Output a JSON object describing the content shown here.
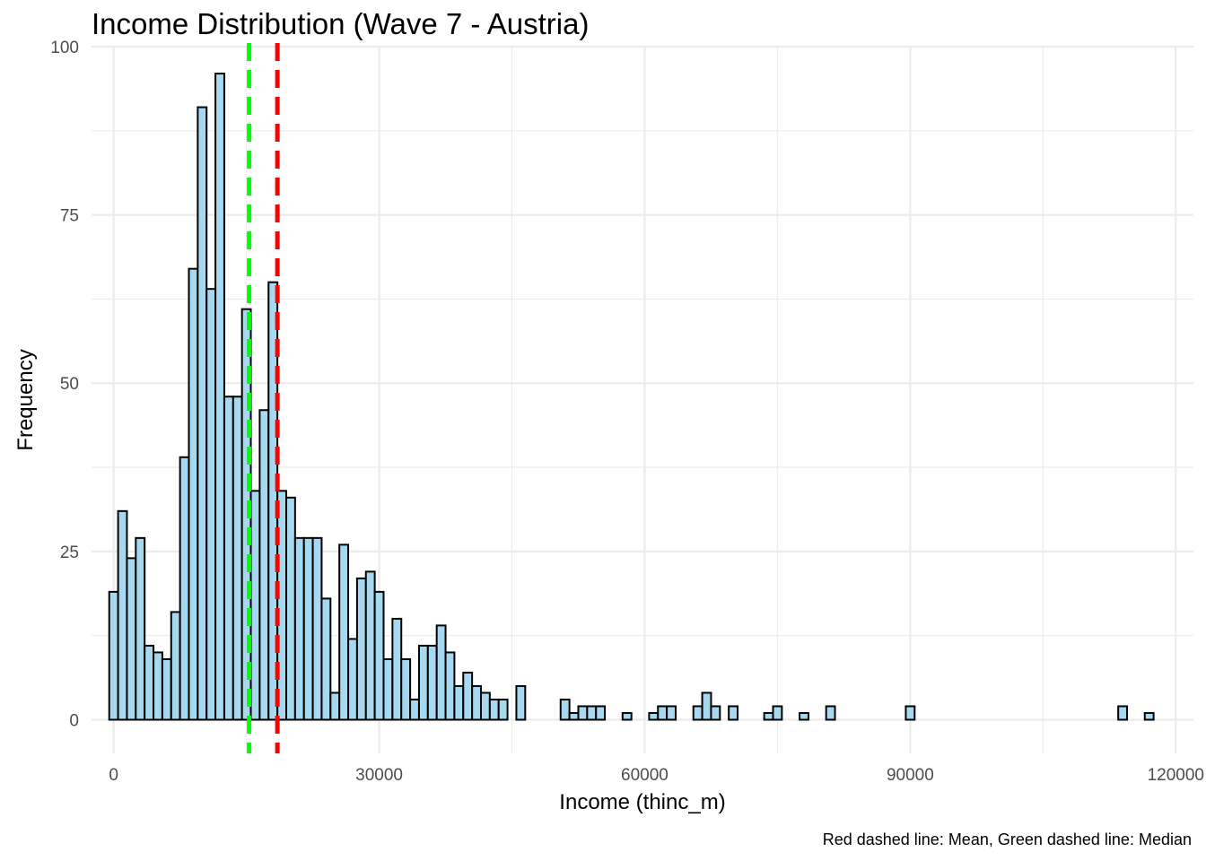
{
  "chart_data": {
    "type": "bar",
    "title": "Income Distribution (Wave 7 - Austria)",
    "xlabel": "Income (thinc_m)",
    "ylabel": "Frequency",
    "caption": "Red dashed line: Mean, Green dashed line: Median",
    "xlim": [
      -2500,
      122000
    ],
    "ylim": [
      -5,
      100
    ],
    "x_ticks": [
      0,
      30000,
      60000,
      90000,
      120000
    ],
    "x_tick_labels": [
      "0",
      "30000",
      "60000",
      "90000",
      "120000"
    ],
    "y_ticks": [
      0,
      25,
      50,
      75,
      100
    ],
    "y_tick_labels": [
      "0",
      "25",
      "50",
      "75",
      "100"
    ],
    "grid": true,
    "bin_start": -500,
    "bin_width": 1000,
    "values": [
      19,
      31,
      24,
      27,
      11,
      10,
      9,
      16,
      39,
      67,
      91,
      64,
      96,
      48,
      48,
      61,
      34,
      46,
      65,
      34,
      33,
      27,
      27,
      27,
      18,
      4,
      26,
      12,
      21,
      22,
      19,
      9,
      15,
      9,
      3,
      11,
      9,
      5,
      4,
      3,
      3,
      0,
      5,
      0,
      0,
      0,
      0,
      0,
      0,
      0,
      0,
      0,
      0,
      0,
      0,
      0,
      0,
      0,
      0,
      0,
      0,
      0,
      0,
      0,
      0,
      0,
      0,
      0,
      0,
      0,
      0,
      0,
      0,
      0,
      0,
      0,
      0,
      0,
      0,
      0,
      0,
      0,
      0,
      0,
      0,
      0,
      0,
      0,
      0,
      0,
      0,
      0,
      0,
      0,
      0,
      0,
      0,
      0,
      0,
      0,
      0,
      0,
      0,
      0,
      0,
      0,
      0,
      0,
      0,
      0,
      0,
      0,
      0,
      0,
      0,
      0,
      0,
      0,
      0
    ],
    "values_note_overrides": [
      [
        36,
        11
      ],
      [
        37,
        14
      ],
      [
        38,
        10
      ],
      [
        39,
        5
      ],
      [
        40,
        7
      ],
      [
        41,
        5
      ],
      [
        42,
        4
      ],
      [
        43,
        3
      ],
      [
        44,
        3
      ],
      [
        46,
        5
      ]
    ],
    "values_tail": [
      [
        51,
        3
      ],
      [
        52,
        1
      ],
      [
        53,
        2
      ],
      [
        54,
        2
      ],
      [
        55,
        2
      ],
      [
        58,
        1
      ],
      [
        61,
        1
      ],
      [
        62,
        2
      ],
      [
        63,
        2
      ],
      [
        66,
        2
      ],
      [
        67,
        4
      ],
      [
        68,
        2
      ],
      [
        70,
        2
      ],
      [
        74,
        1
      ],
      [
        75,
        2
      ],
      [
        78,
        1
      ],
      [
        81,
        2
      ],
      [
        90,
        2
      ],
      [
        114,
        2
      ],
      [
        117,
        1
      ]
    ],
    "mean": 18500,
    "median": 15300,
    "mean_color": "#ff0000",
    "median_color": "#00ff00",
    "bar_fill": "#a6d8f0",
    "bar_stroke": "#000000"
  }
}
